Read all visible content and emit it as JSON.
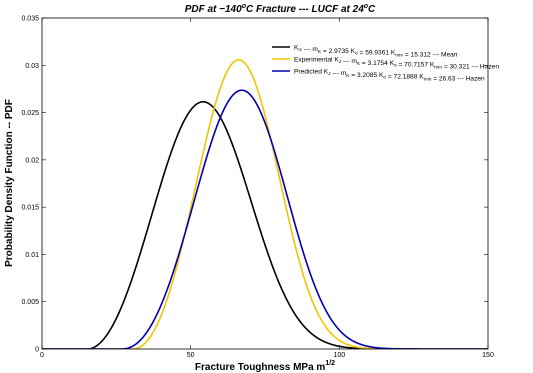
{
  "chart_data": {
    "type": "line",
    "title": {
      "prefix": "PDF at −140",
      "sup1": "o",
      "middle": "C Fracture --- LUCF at 24",
      "sup2": "o",
      "suffix": "C"
    },
    "xlabel": {
      "text": "Fracture Toughness MPa m",
      "sup": "1/2"
    },
    "ylabel": "Probability Density Function -- PDF",
    "xlim": [
      0,
      150
    ],
    "ylim": [
      0,
      0.035
    ],
    "xticks": [
      "0",
      "50",
      "100",
      "150"
    ],
    "yticks": [
      "0",
      "0.005",
      "0.01",
      "0.015",
      "0.02",
      "0.025",
      "0.03",
      "0.035"
    ],
    "grid": false,
    "legend_position": "top-right",
    "series": [
      {
        "color": "#000000",
        "legend": [
          {
            "t": "K"
          },
          {
            "t": "Ic",
            "sub": true
          },
          {
            "t": " --- m"
          },
          {
            "t": "K",
            "sub": true
          },
          {
            "t": " = 2.9735 K"
          },
          {
            "t": "o",
            "sub": true
          },
          {
            "t": " = 59.9361 K"
          },
          {
            "t": "min",
            "sub": true
          },
          {
            "t": " = 15.312 --- Mean"
          }
        ],
        "m": 2.9735,
        "k0": 59.9361,
        "kmin": 15.312
      },
      {
        "color": "#f2c500",
        "legend": [
          {
            "t": "Experimental K"
          },
          {
            "t": "J",
            "sub": true
          },
          {
            "t": " --- m"
          },
          {
            "t": "K",
            "sub": true
          },
          {
            "t": " = 3.1754 K"
          },
          {
            "t": "o",
            "sub": true
          },
          {
            "t": " = 70.7157 K"
          },
          {
            "t": "min",
            "sub": true
          },
          {
            "t": " = 30.321 --- Hazen"
          }
        ],
        "m": 3.1754,
        "k0": 70.7157,
        "kmin": 30.321
      },
      {
        "color": "#0000b0",
        "legend": [
          {
            "t": "Predicted K"
          },
          {
            "t": "J",
            "sub": true
          },
          {
            "t": " --- m"
          },
          {
            "t": "K",
            "sub": true
          },
          {
            "t": " = 3.2085 K"
          },
          {
            "t": "o",
            "sub": true
          },
          {
            "t": " = 72.1888 K"
          },
          {
            "t": "min",
            "sub": true
          },
          {
            "t": " = 26.63 --- Hazen"
          }
        ],
        "m": 3.2085,
        "k0": 72.1888,
        "kmin": 26.63
      }
    ]
  }
}
